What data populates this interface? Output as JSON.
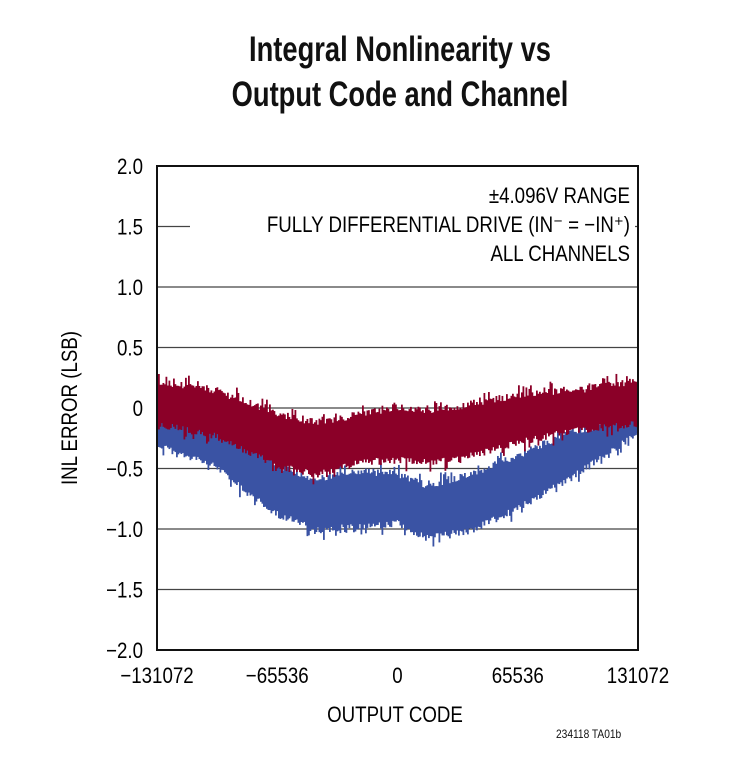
{
  "chart_data": {
    "type": "area",
    "title": [
      "Integral Nonlinearity vs",
      "Output Code and Channel"
    ],
    "xlabel": "OUTPUT CODE",
    "ylabel": "INL ERROR (LSB)",
    "xlim": [
      -131072,
      131072
    ],
    "ylim": [
      -2.0,
      2.0
    ],
    "xticks": [
      -131072,
      -65536,
      0,
      65536,
      131072
    ],
    "xtick_labels": [
      "−131072",
      "−65536",
      "0",
      "65536",
      "131072"
    ],
    "yticks": [
      2.0,
      1.5,
      1.0,
      0.5,
      0,
      -0.5,
      -1.0,
      -1.5,
      -2.0
    ],
    "ytick_labels": [
      "2.0",
      "1.5",
      "1.0",
      "0.5",
      "0",
      "−0.5",
      "−1.0",
      "−1.5",
      "−2.0"
    ],
    "grid": true,
    "annotations": [
      "±4.096V RANGE",
      "FULLY DIFFERENTIAL DRIVE (IN⁻ = −IN⁺)",
      "ALL CHANNELS"
    ],
    "series": [
      {
        "color": "#3a53a4",
        "envelope": {
          "x": [
            -131072,
            -100000,
            -80000,
            -65536,
            -45000,
            -20000,
            0,
            15000,
            40000,
            65536,
            90000,
            131072
          ],
          "low": [
            -0.28,
            -0.45,
            -0.7,
            -0.85,
            -0.98,
            -0.95,
            -0.92,
            -1.05,
            -0.98,
            -0.8,
            -0.58,
            -0.18
          ],
          "high": [
            -0.12,
            -0.2,
            -0.35,
            -0.5,
            -0.62,
            -0.55,
            -0.58,
            -0.67,
            -0.58,
            -0.42,
            -0.25,
            -0.08
          ]
        }
      },
      {
        "color": "#8b0028",
        "envelope": {
          "x": [
            -131072,
            -100000,
            -65536,
            -45000,
            -20000,
            0,
            20000,
            45000,
            65536,
            100000,
            131072
          ],
          "low": [
            -0.1,
            -0.2,
            -0.45,
            -0.52,
            -0.42,
            -0.4,
            -0.42,
            -0.35,
            -0.25,
            -0.15,
            -0.1
          ],
          "high": [
            0.18,
            0.12,
            -0.08,
            -0.15,
            -0.08,
            -0.02,
            -0.05,
            0.02,
            0.08,
            0.12,
            0.2
          ]
        }
      }
    ]
  },
  "footnote": "234118 TA01b"
}
